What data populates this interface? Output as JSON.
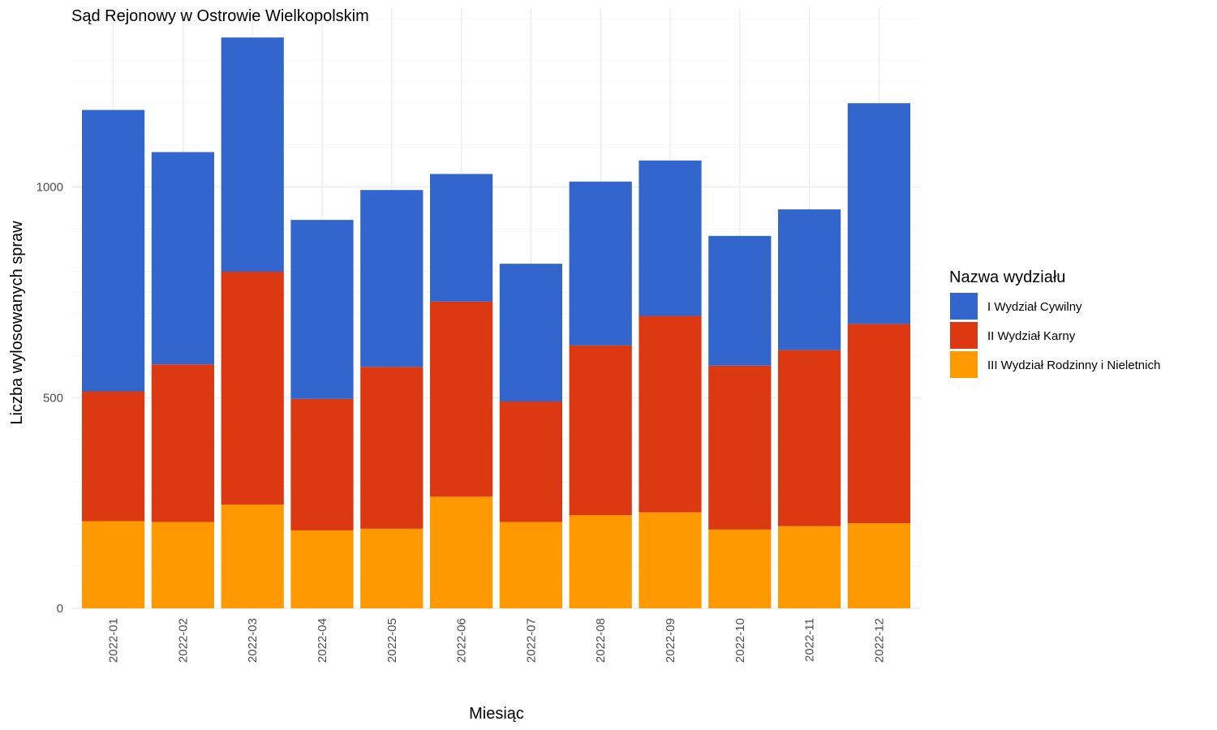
{
  "chart_data": {
    "type": "bar",
    "stacked": true,
    "title": "Sąd Rejonowy w Ostrowie Wielkopolskim",
    "xlabel": "Miesiąc",
    "ylabel": "Liczba wylosowanych spraw",
    "ylim": [
      0,
      1400
    ],
    "yticks": [
      0,
      500,
      1000
    ],
    "grid": true,
    "categories": [
      "2022-01",
      "2022-02",
      "2022-03",
      "2022-04",
      "2022-05",
      "2022-06",
      "2022-07",
      "2022-08",
      "2022-09",
      "2022-10",
      "2022-11",
      "2022-12"
    ],
    "legend": {
      "title": "Nazwa wydziału",
      "position": "right"
    },
    "series": [
      {
        "name": "III Wydział Rodzinny i Nieletnich",
        "color": "#FF9900",
        "values": [
          207,
          205,
          246,
          185,
          189,
          265,
          205,
          221,
          228,
          187,
          195,
          202
        ]
      },
      {
        "name": "II Wydział Karny",
        "color": "#DC3912",
        "values": [
          308,
          374,
          553,
          312,
          384,
          463,
          286,
          403,
          466,
          389,
          418,
          473
        ]
      },
      {
        "name": "I Wydział Cywilny",
        "color": "#3366CC",
        "values": [
          668,
          504,
          556,
          425,
          420,
          303,
          327,
          389,
          369,
          308,
          334,
          524
        ]
      }
    ]
  }
}
